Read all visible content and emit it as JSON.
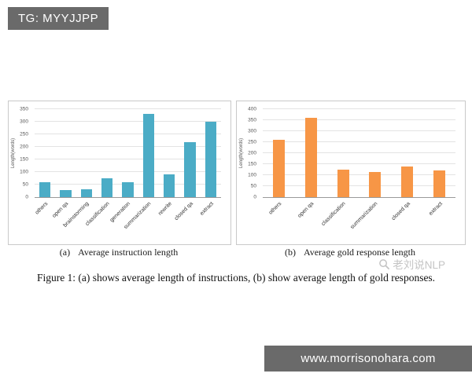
{
  "tag_box": {
    "label": "TG: MYYJJPP"
  },
  "footer": {
    "url": "www.morrisonohara.com"
  },
  "watermark": {
    "text": "老刘说NLP"
  },
  "figure": {
    "caption": "Figure 1: (a) shows average length of instructions, (b) show average length of gold responses.",
    "subcaptions": [
      {
        "marker": "(a)",
        "text": "Average instruction length"
      },
      {
        "marker": "(b)",
        "text": "Average gold response length"
      }
    ]
  },
  "colors": {
    "teal": "#4BACC6",
    "orange": "#F79646",
    "banner_gray": "#6a6a6a"
  },
  "chart_data": [
    {
      "type": "bar",
      "title": "Average instruction length",
      "ylabel": "Length(words)",
      "categories": [
        "others",
        "open qa",
        "brainstorming",
        "classification",
        "generation",
        "summarization",
        "rewrite",
        "closed qa",
        "extract"
      ],
      "values": [
        60,
        28,
        30,
        75,
        60,
        330,
        90,
        220,
        300
      ],
      "ylim": [
        0,
        350
      ],
      "ytick_step": 50,
      "bar_color": "#4BACC6",
      "grid": true,
      "legend": false
    },
    {
      "type": "bar",
      "title": "Average gold response length",
      "ylabel": "Length(words)",
      "categories": [
        "others",
        "open qa",
        "classification",
        "summarization",
        "closed qa",
        "extract"
      ],
      "values": [
        260,
        360,
        125,
        115,
        140,
        120
      ],
      "ylim": [
        0,
        400
      ],
      "ytick_step": 50,
      "bar_color": "#F79646",
      "grid": true,
      "legend": false
    }
  ]
}
